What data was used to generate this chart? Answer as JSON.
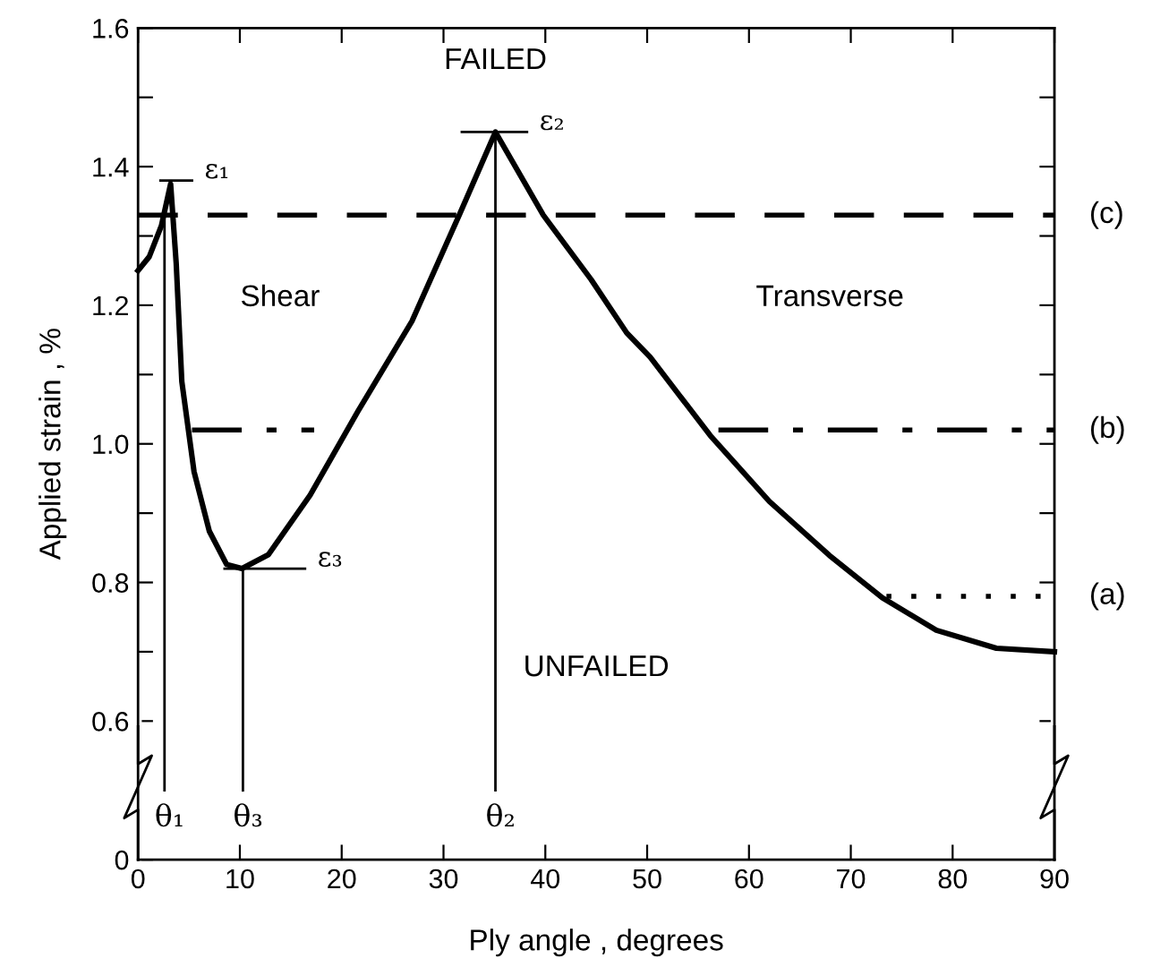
{
  "chart_data": {
    "type": "line",
    "xlabel": "Ply angle , degrees",
    "ylabel": "Applied strain , %",
    "xlim": [
      0,
      90
    ],
    "xticks": [
      0,
      10,
      20,
      30,
      40,
      50,
      60,
      70,
      80,
      90
    ],
    "ylim": [
      0.4,
      1.6
    ],
    "yticks": [
      {
        "value": 0.4,
        "label": "0"
      },
      0.6,
      {
        "value": 0.7,
        "label": null
      },
      0.8,
      {
        "value": 0.9,
        "label": null
      },
      {
        "value": 1.0,
        "label": "1.0"
      },
      {
        "value": 1.1,
        "label": null
      },
      1.2,
      {
        "value": 1.3,
        "label": null
      },
      1.4,
      {
        "value": 1.5,
        "label": null
      },
      1.6
    ],
    "grid": false,
    "legend": false,
    "marker": "none",
    "series": [
      {
        "color": "#000000",
        "line_style": "solid",
        "x": [
          0,
          1.1,
          2.3,
          3.2,
          3.75,
          4.3,
          5.5,
          7.0,
          8.7,
          10.2,
          12.8,
          16.9,
          21.6,
          26.9,
          31.6,
          35.1,
          39.8,
          44.5,
          48,
          50.3,
          56.2,
          62.0,
          67.9,
          73.1,
          78.4,
          84.3,
          90
        ],
        "values": [
          1.25,
          1.27,
          1.315,
          1.375,
          1.26,
          1.09,
          0.96,
          0.874,
          0.826,
          0.82,
          0.84,
          0.926,
          1.047,
          1.177,
          1.332,
          1.45,
          1.33,
          1.237,
          1.16,
          1.125,
          1.012,
          0.917,
          0.839,
          0.778,
          0.731,
          0.705,
          0.7
        ]
      },
      {
        "color": "#000000",
        "line_style": "dashed",
        "x": [
          0,
          90
        ],
        "values": [
          1.33,
          1.33
        ]
      },
      {
        "color": "#000000",
        "line_style": "dashdot",
        "x": [
          5.3,
          17.3,
          37,
          57,
          90
        ],
        "values": [
          1.02,
          1.02,
          null,
          1.02,
          1.02
        ]
      },
      {
        "color": "#000000",
        "line_style": "dotted",
        "x": [
          73.5,
          90
        ],
        "values": [
          0.78,
          0.78
        ]
      },
      {
        "color": "#000000",
        "line_style": "solid",
        "x": [
          2.2,
          5.3
        ],
        "values": [
          1.38,
          1.38
        ]
      },
      {
        "color": "#000000",
        "line_style": "solid",
        "x": [
          31.8,
          38.2
        ],
        "values": [
          1.45,
          1.45
        ]
      },
      {
        "color": "#000000",
        "line_style": "solid",
        "x": [
          8.5,
          16.4
        ],
        "values": [
          0.82,
          0.82
        ]
      }
    ],
    "ref_lines": [
      {
        "axis": "x",
        "value": 2.6,
        "label": "θ₁"
      },
      {
        "axis": "x",
        "value": 10.3,
        "label": "θ₃"
      },
      {
        "axis": "x",
        "value": 35.1,
        "label": "θ₂"
      }
    ],
    "annotations": [
      {
        "text": "ε₁",
        "x": 5.3,
        "y": 1.38
      },
      {
        "text": "ε₂",
        "x": 38.2,
        "y": 1.45
      },
      {
        "text": "ε₃",
        "x": 16.4,
        "y": 0.82
      },
      {
        "text": "(c)",
        "x": 90,
        "y": 1.33
      },
      {
        "text": "(b)",
        "x": 90,
        "y": 1.02
      },
      {
        "text": "(a)",
        "x": 90,
        "y": 0.78
      },
      "FAILED",
      "Shear",
      "Transverse",
      "UNFAILED"
    ]
  }
}
